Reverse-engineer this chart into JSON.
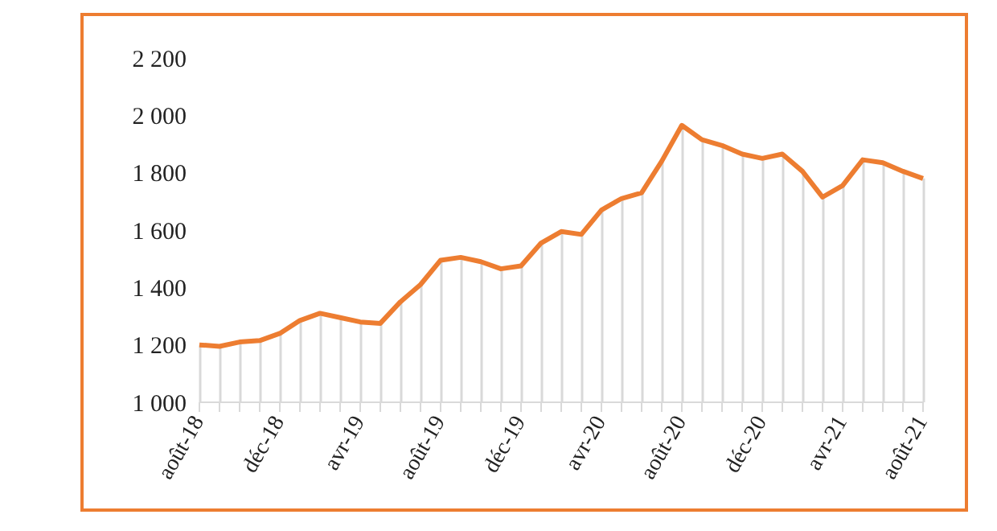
{
  "chart_data": {
    "type": "line",
    "categories": [
      "août-18",
      null,
      null,
      null,
      "déc-18",
      null,
      null,
      null,
      "avr-19",
      null,
      null,
      null,
      "août-19",
      null,
      null,
      null,
      "déc-19",
      null,
      null,
      null,
      "avr-20",
      null,
      null,
      null,
      "août-20",
      null,
      null,
      null,
      "déc-20",
      null,
      null,
      null,
      "avr-21",
      null,
      null,
      null,
      "août-21"
    ],
    "series": [
      {
        "type": "bar",
        "color": "#d9d9d9",
        "values": [
          1200,
          1195,
          1210,
          1215,
          1240,
          1285,
          1310,
          1295,
          1280,
          1275,
          1350,
          1410,
          1495,
          1505,
          1490,
          1465,
          1475,
          1555,
          1595,
          1585,
          1670,
          1710,
          1730,
          1840,
          1965,
          1915,
          1895,
          1865,
          1850,
          1865,
          1805,
          1715,
          1755,
          1845,
          1835,
          1805,
          1780
        ]
      },
      {
        "color": "#ed7d31",
        "values": [
          1200,
          1195,
          1210,
          1215,
          1240,
          1285,
          1310,
          1295,
          1280,
          1275,
          1350,
          1410,
          1495,
          1505,
          1490,
          1465,
          1475,
          1555,
          1595,
          1585,
          1670,
          1710,
          1730,
          1840,
          1965,
          1915,
          1895,
          1865,
          1850,
          1865,
          1805,
          1715,
          1755,
          1845,
          1835,
          1805,
          1780
        ]
      }
    ],
    "ylim": [
      1000,
      2200
    ],
    "yticks": [
      {
        "value": 1000,
        "label": "1 000"
      },
      {
        "value": 1200,
        "label": "1 200"
      },
      {
        "value": 1400,
        "label": "1 400"
      },
      {
        "value": 1600,
        "label": "1 600"
      },
      {
        "value": 1800,
        "label": "1 800"
      },
      {
        "value": 2000,
        "label": "2 000"
      },
      {
        "value": 2200,
        "label": "2 200"
      }
    ],
    "grid": false,
    "legend": false,
    "marker": "none",
    "line_style": "solid"
  }
}
